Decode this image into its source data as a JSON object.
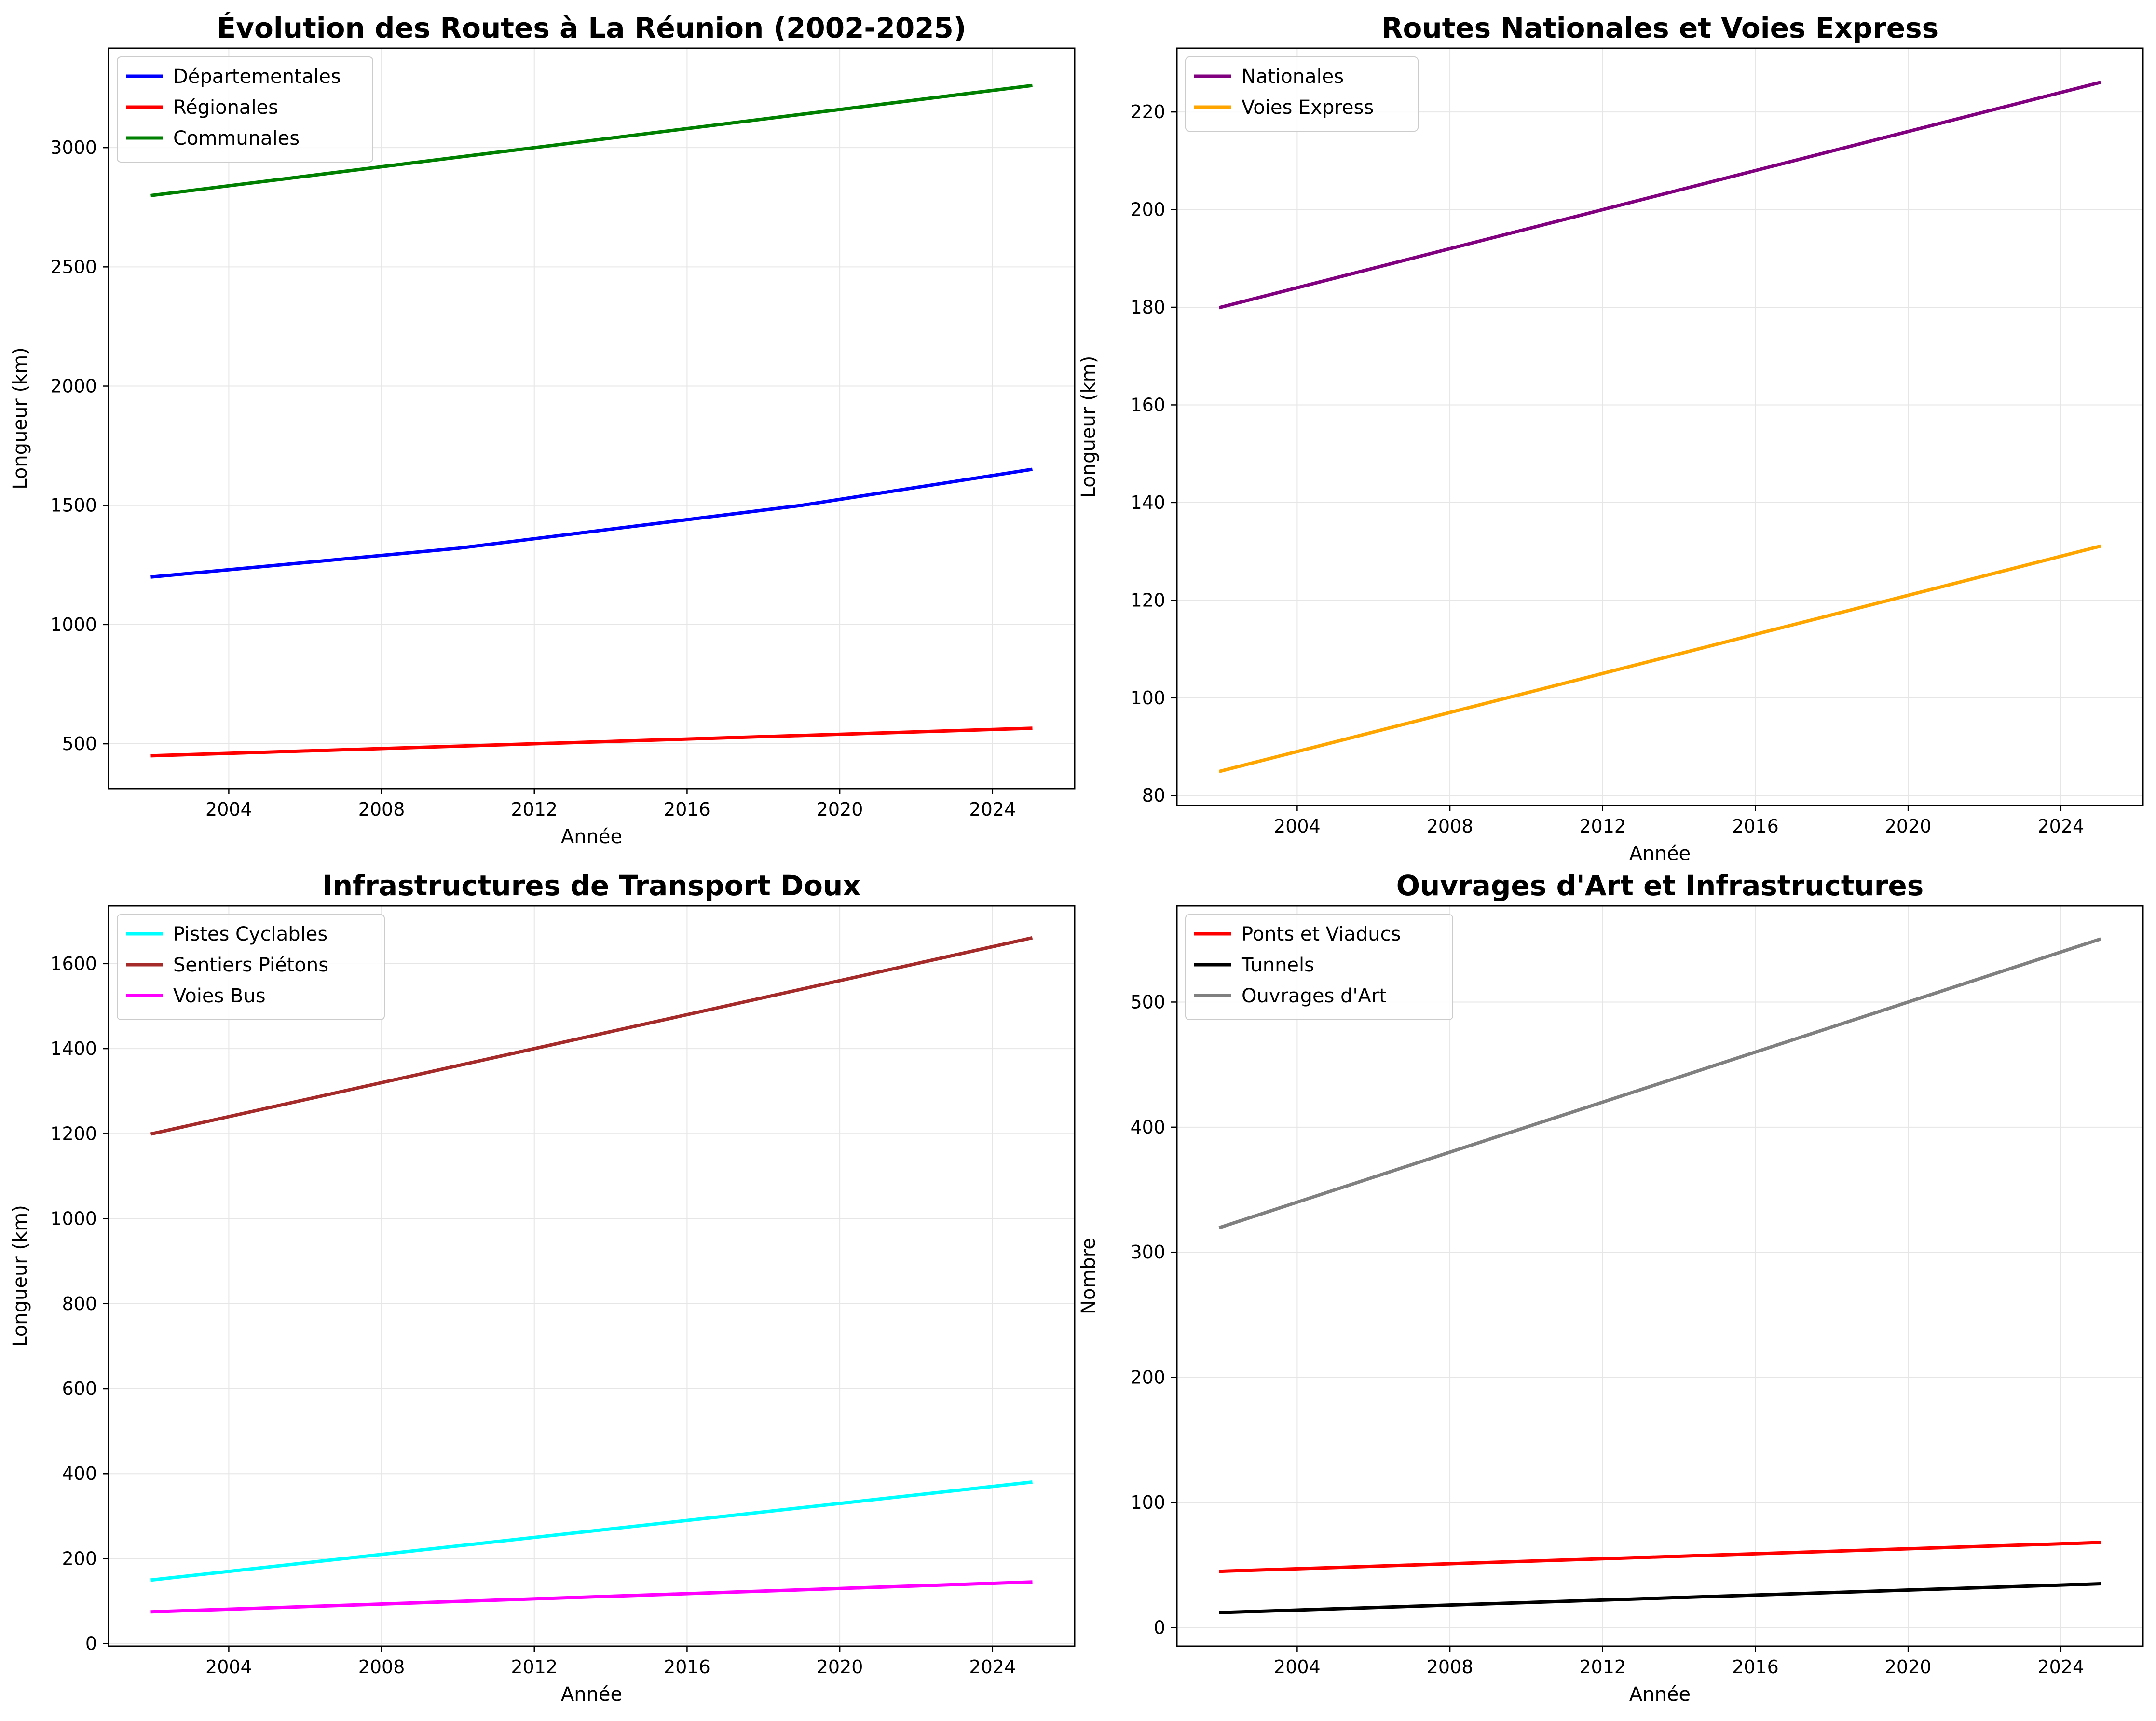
{
  "chart_data": [
    {
      "type": "line",
      "title": "Évolution des Routes à La Réunion (2002-2025)",
      "xlabel": "Année",
      "ylabel": "Longueur (km)",
      "xlim": [
        2000.85,
        2026.15
      ],
      "ylim": [
        312,
        3417
      ],
      "xticks": [
        2004,
        2008,
        2012,
        2016,
        2020,
        2024
      ],
      "yticks": [
        500,
        1000,
        1500,
        2000,
        2500,
        3000
      ],
      "grid": true,
      "legend_position": "upper-left",
      "series": [
        {
          "name": "Départementales",
          "color": "#0000ff",
          "x": [
            2002,
            2010,
            2019,
            2025
          ],
          "y": [
            1200,
            1320,
            1500,
            1650
          ]
        },
        {
          "name": "Régionales",
          "color": "#ff0000",
          "x": [
            2002,
            2025
          ],
          "y": [
            450,
            565
          ]
        },
        {
          "name": "Communales",
          "color": "#008000",
          "x": [
            2002,
            2025
          ],
          "y": [
            2800,
            3260
          ]
        }
      ]
    },
    {
      "type": "line",
      "title": "Routes Nationales et Voies Express",
      "xlabel": "Année",
      "ylabel": "Longueur (km)",
      "xlim": [
        2000.85,
        2026.15
      ],
      "ylim": [
        77.95,
        233.05
      ],
      "xticks": [
        2004,
        2008,
        2012,
        2016,
        2020,
        2024
      ],
      "yticks": [
        80,
        100,
        120,
        140,
        160,
        180,
        200,
        220
      ],
      "grid": true,
      "legend_position": "upper-left",
      "series": [
        {
          "name": "Nationales",
          "color": "#800080",
          "x": [
            2002,
            2025
          ],
          "y": [
            180,
            226
          ]
        },
        {
          "name": "Voies Express",
          "color": "#ffa500",
          "x": [
            2002,
            2025
          ],
          "y": [
            85,
            131
          ]
        }
      ]
    },
    {
      "type": "line",
      "title": "Infrastructures de Transport Doux",
      "xlabel": "Année",
      "ylabel": "Longueur (km)",
      "xlim": [
        2000.85,
        2026.15
      ],
      "ylim": [
        -6,
        1736
      ],
      "xticks": [
        2004,
        2008,
        2012,
        2016,
        2020,
        2024
      ],
      "yticks": [
        0,
        200,
        400,
        600,
        800,
        1000,
        1200,
        1400,
        1600
      ],
      "grid": true,
      "legend_position": "upper-left",
      "series": [
        {
          "name": "Pistes Cyclables",
          "color": "#00ffff",
          "x": [
            2002,
            2025
          ],
          "y": [
            150,
            380
          ]
        },
        {
          "name": "Sentiers Piétons",
          "color": "#a52a2a",
          "x": [
            2002,
            2025
          ],
          "y": [
            1200,
            1660
          ]
        },
        {
          "name": "Voies Bus",
          "color": "#ff00ff",
          "x": [
            2002,
            2025
          ],
          "y": [
            75,
            145
          ]
        }
      ]
    },
    {
      "type": "line",
      "title": "Ouvrages d'Art et Infrastructures",
      "xlabel": "Année",
      "ylabel": "Nombre",
      "xlim": [
        2000.85,
        2026.15
      ],
      "ylim": [
        -14.9,
        576.9
      ],
      "xticks": [
        2004,
        2008,
        2012,
        2016,
        2020,
        2024
      ],
      "yticks": [
        0,
        100,
        200,
        300,
        400,
        500
      ],
      "grid": true,
      "legend_position": "upper-left",
      "series": [
        {
          "name": "Ponts et Viaducs",
          "color": "#ff0000",
          "x": [
            2002,
            2025
          ],
          "y": [
            45,
            68
          ]
        },
        {
          "name": "Tunnels",
          "color": "#000000",
          "x": [
            2002,
            2025
          ],
          "y": [
            12,
            35
          ]
        },
        {
          "name": "Ouvrages d'Art",
          "color": "#808080",
          "x": [
            2002,
            2025
          ],
          "y": [
            320,
            550
          ]
        }
      ]
    }
  ]
}
